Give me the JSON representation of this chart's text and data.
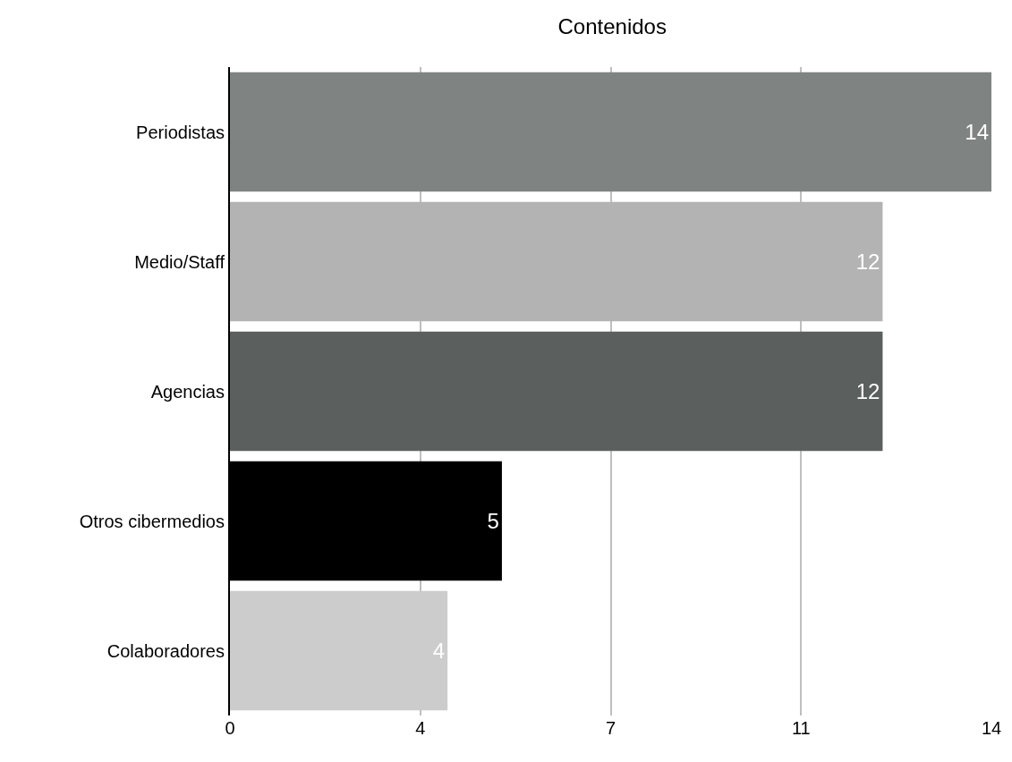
{
  "chart_data": {
    "type": "bar",
    "title": "Contenidos",
    "orientation": "horizontal",
    "categories": [
      "Periodistas",
      "Medio/Staff",
      "Agencias",
      "Otros cibermedios",
      "Colaboradores"
    ],
    "values": [
      14,
      12,
      12,
      5,
      4
    ],
    "colors": [
      "#7f8482",
      "#b3b3b3",
      "#5b5f5e",
      "#000000",
      "#cccccc"
    ],
    "xlim": [
      0,
      14
    ],
    "xticks": [
      0,
      {
        "value": 3.5,
        "label": "4"
      },
      7,
      {
        "value": 10.5,
        "label": "11"
      },
      14
    ],
    "grid": "x",
    "data_labels": true
  }
}
